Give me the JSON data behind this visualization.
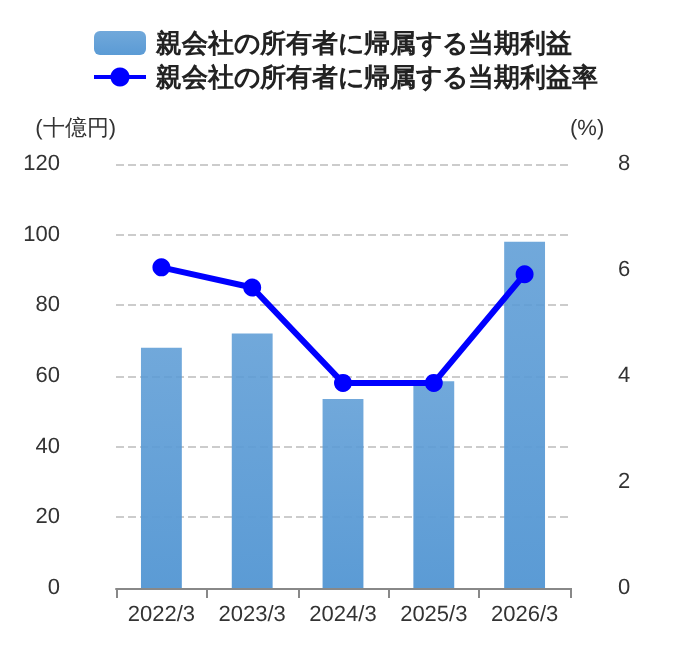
{
  "chart_data": {
    "type": "bar",
    "ylabel": "(十億円)",
    "y2label": "(%)",
    "categories": [
      "2022/3",
      "2023/3",
      "2024/3",
      "2025/3",
      "2026/3"
    ],
    "series": [
      {
        "name": "親会社の所有者に帰属する当期利益",
        "color": "#5b9bd5",
        "values": [
          68,
          72,
          53.5,
          58.5,
          98
        ]
      },
      {
        "name": "親会社の所有者に帰属する当期利益率",
        "type": "line",
        "axis": "y2",
        "color": "#0000ff",
        "values": [
          6.05,
          5.67,
          3.87,
          3.87,
          5.92
        ]
      }
    ],
    "ylim": [
      0,
      120
    ],
    "yticks": [
      0,
      20,
      40,
      60,
      80,
      100,
      120
    ],
    "y2lim": [
      0,
      8
    ],
    "y2ticks": [
      0,
      2,
      4,
      6,
      8
    ],
    "grid": "y",
    "legend": "top",
    "marker": "circle",
    "line_style": "solid"
  }
}
